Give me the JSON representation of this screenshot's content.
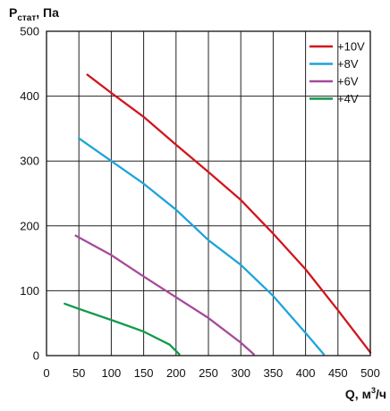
{
  "chart_data": {
    "type": "line",
    "ylabel_main": "P",
    "ylabel_sub": "стат",
    "ylabel_unit": ", Па",
    "xlabel_main": "Q, м",
    "xlabel_sup": "3",
    "xlabel_unit": "/ч",
    "xlim": [
      0,
      500
    ],
    "ylim": [
      0,
      500
    ],
    "xticks": [
      0,
      50,
      100,
      150,
      200,
      250,
      300,
      350,
      400,
      450,
      500
    ],
    "yticks": [
      0,
      100,
      200,
      300,
      400,
      500
    ],
    "grid": true,
    "legend_position": "top-right",
    "series": [
      {
        "name": "+10V",
        "color": "#d0161c",
        "x": [
          63,
          100,
          150,
          200,
          250,
          300,
          350,
          400,
          450,
          500
        ],
        "y": [
          433,
          405,
          368,
          325,
          283,
          240,
          188,
          133,
          70,
          5
        ]
      },
      {
        "name": "+8V",
        "color": "#1ea4dc",
        "x": [
          50,
          100,
          150,
          200,
          250,
          300,
          350,
          400,
          428
        ],
        "y": [
          335,
          300,
          265,
          225,
          178,
          140,
          92,
          35,
          2
        ]
      },
      {
        "name": "+6V",
        "color": "#a54a9a",
        "x": [
          45,
          100,
          150,
          200,
          250,
          300,
          320
        ],
        "y": [
          185,
          155,
          122,
          90,
          58,
          20,
          2
        ]
      },
      {
        "name": "+4V",
        "color": "#119a4c",
        "x": [
          28,
          50,
          100,
          150,
          190,
          205
        ],
        "y": [
          80,
          72,
          55,
          37,
          17,
          2
        ]
      }
    ]
  }
}
